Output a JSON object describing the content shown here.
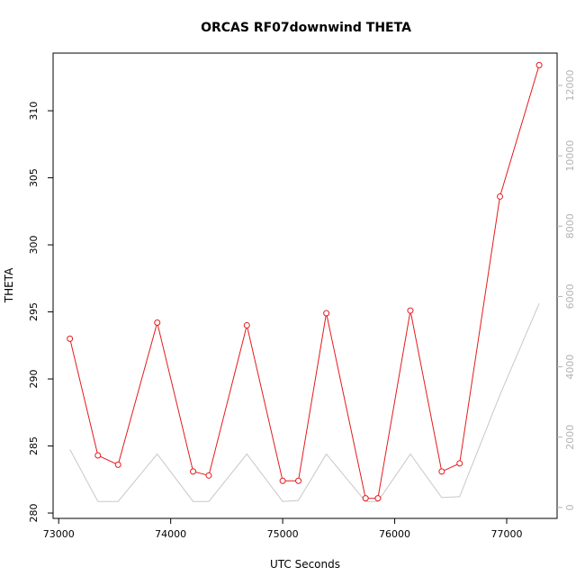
{
  "chart_data": {
    "type": "line",
    "title": "ORCAS RF07downwind THETA",
    "xlabel": "UTC Seconds",
    "ylabel": "THETA",
    "xlim": [
      72950,
      77450
    ],
    "ylim": [
      279.6,
      314.3
    ],
    "y2lim": [
      -310,
      12920
    ],
    "x_ticks": [
      73000,
      74000,
      75000,
      76000,
      77000
    ],
    "x_tick_labels": [
      "73000",
      "74000",
      "75000",
      "76000",
      "77000"
    ],
    "y_ticks": [
      280,
      285,
      290,
      295,
      300,
      305,
      310
    ],
    "y_tick_labels": [
      "280",
      "285",
      "290",
      "295",
      "300",
      "305",
      "310"
    ],
    "y2_ticks": [
      0,
      2000,
      4000,
      6000,
      8000,
      10000,
      12000
    ],
    "y2_tick_labels": [
      "0",
      "2000",
      "4000",
      "6000",
      "8000",
      "10000",
      "12000"
    ],
    "grid": false,
    "series": [
      {
        "color": "#e41a1c",
        "axis": "left",
        "markers": true,
        "x": [
          73100,
          73350,
          73530,
          73880,
          74200,
          74340,
          74680,
          75000,
          75140,
          75390,
          75740,
          75850,
          76140,
          76420,
          76580,
          76940,
          77290
        ],
        "values": [
          293.0,
          284.3,
          283.6,
          294.2,
          283.1,
          282.8,
          294.0,
          282.4,
          282.4,
          294.9,
          281.1,
          281.1,
          295.1,
          283.1,
          283.7,
          303.6,
          313.4
        ]
      },
      {
        "color": "#c8c8c8",
        "axis": "right",
        "markers": false,
        "x": [
          73100,
          73350,
          73530,
          73880,
          74200,
          74340,
          74680,
          75000,
          75140,
          75390,
          75740,
          75850,
          76140,
          76420,
          76580,
          76940,
          77290
        ],
        "values": [
          1650,
          170,
          170,
          1520,
          170,
          170,
          1520,
          170,
          200,
          1520,
          170,
          170,
          1520,
          280,
          310,
          3200,
          5800
        ]
      }
    ]
  }
}
